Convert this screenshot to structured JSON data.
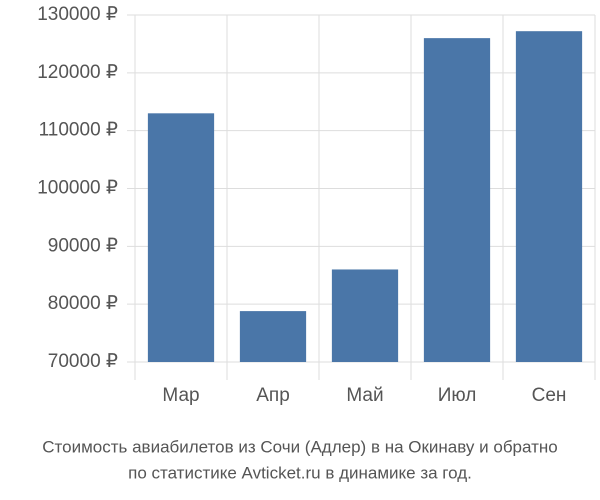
{
  "chart_data": {
    "type": "bar",
    "title": "Стоимость авиабилетов из Сочи (Адлер) в на Окинаву и обратно",
    "subtitle": "по статистике Avticket.ru в динамике за год.",
    "categories": [
      "Мар",
      "Апр",
      "Май",
      "Июл",
      "Сен"
    ],
    "values": [
      113000,
      78800,
      86000,
      126000,
      127200
    ],
    "color": "#4a76a8",
    "ylim": [
      70000,
      130000
    ],
    "yticks": [
      {
        "value": 70000,
        "label": "70000 ₽"
      },
      {
        "value": 80000,
        "label": "80000 ₽"
      },
      {
        "value": 90000,
        "label": "90000 ₽"
      },
      {
        "value": 100000,
        "label": "100000 ₽"
      },
      {
        "value": 110000,
        "label": "110000 ₽"
      },
      {
        "value": 120000,
        "label": "120000 ₽"
      },
      {
        "value": 130000,
        "label": "130000 ₽"
      }
    ],
    "grid": true
  }
}
